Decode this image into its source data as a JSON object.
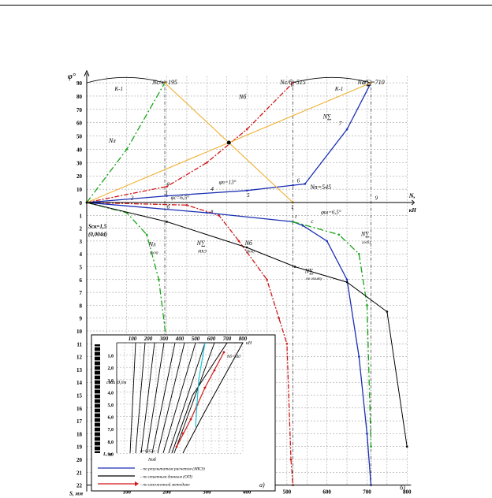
{
  "colors": {
    "axis": "#000000",
    "grid": "#8c8c8c",
    "green": "#1aa31a",
    "red": "#d01818",
    "blue": "#1c2fb4",
    "orange": "#f0b030",
    "black": "#000000",
    "cyan": "#19c8d8",
    "magenta": "#e0208a"
  },
  "chart_data": {
    "type": "line",
    "axes": {
      "phi_label": "φ°",
      "n_label": "N,",
      "n_unit": "кН",
      "s_label": "S, мм",
      "phi_ticks": [
        "90",
        "80",
        "70",
        "60",
        "50",
        "40",
        "30",
        "20",
        "10",
        "0"
      ],
      "s_ticks": [
        "1",
        "2",
        "3",
        "4",
        "5",
        "6",
        "7",
        "8",
        "9",
        "10",
        "11",
        "12",
        "13",
        "14",
        "15",
        "16",
        "17",
        "18",
        "19",
        "20",
        "21",
        "22"
      ],
      "n_ticks": [
        "100",
        "200",
        "300",
        "400",
        "500",
        "600",
        "700",
        "800"
      ],
      "phi_range": [
        0,
        95
      ],
      "s_range": [
        0,
        22
      ],
      "n_range": [
        0,
        800
      ]
    },
    "top_labels": [
      {
        "text": "Nс/л=195",
        "n": 195
      },
      {
        "text": "Nс/б=515",
        "n": 515
      },
      {
        "text": "Nс/∑=710",
        "n": 710
      }
    ],
    "annotations": {
      "k1_left": "К-1",
      "k1_right": "К-1",
      "n_pi": "Nп=545",
      "phi_p": "φп=13°",
      "phi_c": "φс=6,5°",
      "phi_sh": "φш=6,5°",
      "s_ck": "Sск=1,5",
      "s_ck2": "(0,004d)",
      "n_b_label": "Nб",
      "n_l_label": "Nл",
      "n_sigma_label": "N∑",
      "n_l_bottom": "Nл",
      "n_l_bottom_sub": "(осв)",
      "n_sig_mke": "N∑",
      "n_sig_mke_sub": "МКЭ",
      "n_b_bottom": "Nб",
      "n_b_bottom_sub": "(бок)",
      "n_sig_right": "N∑",
      "n_sig_right_sub": "(осб)",
      "n_sig_opyt": "N∑",
      "n_sig_opyt_sub": "по опыту",
      "point_labels": [
        "2",
        "3",
        "4",
        "5",
        "6",
        "7",
        "8",
        "9",
        "1",
        "а",
        "б",
        "в",
        "г",
        "с",
        "о",
        "к"
      ],
      "panel_b": "б)"
    },
    "series": [
      {
        "key": "green_upper",
        "points": [
          [
            0,
            0
          ],
          [
            100,
            40
          ],
          [
            195,
            90
          ]
        ]
      },
      {
        "key": "red_upper",
        "points": [
          [
            0,
            0
          ],
          [
            200,
            12
          ],
          [
            300,
            30
          ],
          [
            400,
            55
          ],
          [
            515,
            90
          ]
        ]
      },
      {
        "key": "blue_upper",
        "points": [
          [
            0,
            0
          ],
          [
            200,
            5
          ],
          [
            400,
            9
          ],
          [
            515,
            13
          ],
          [
            545,
            14
          ],
          [
            650,
            55
          ],
          [
            710,
            90
          ]
        ]
      },
      {
        "key": "orange_x1",
        "points": [
          [
            195,
            90
          ],
          [
            515,
            0
          ]
        ]
      },
      {
        "key": "orange_x2",
        "points": [
          [
            0,
            0
          ],
          [
            710,
            90
          ]
        ]
      },
      {
        "key": "green_lower",
        "points": [
          [
            0,
            0
          ],
          [
            100,
            0.8
          ],
          [
            150,
            2.5
          ],
          [
            180,
            6
          ],
          [
            200,
            11
          ]
        ]
      },
      {
        "key": "red_lower",
        "points": [
          [
            0,
            0
          ],
          [
            250,
            0.2
          ],
          [
            330,
            1
          ],
          [
            380,
            3
          ],
          [
            450,
            6
          ],
          [
            480,
            9
          ],
          [
            500,
            11
          ],
          [
            510,
            20
          ],
          [
            515,
            22
          ]
        ]
      },
      {
        "key": "blue_lower",
        "points": [
          [
            0,
            0
          ],
          [
            300,
            0.8
          ],
          [
            515,
            1.5
          ],
          [
            540,
            1.8
          ],
          [
            600,
            3
          ],
          [
            650,
            6
          ],
          [
            680,
            12
          ],
          [
            700,
            18
          ],
          [
            710,
            22
          ]
        ]
      },
      {
        "key": "green_right",
        "points": [
          [
            515,
            1.5
          ],
          [
            630,
            2.5
          ],
          [
            680,
            4
          ],
          [
            700,
            8
          ],
          [
            710,
            19
          ]
        ]
      },
      {
        "key": "black_lower",
        "points": [
          [
            0,
            0
          ],
          [
            200,
            1.5
          ],
          [
            400,
            3.5
          ],
          [
            520,
            5
          ],
          [
            650,
            6.2
          ],
          [
            750,
            8.5
          ],
          [
            800,
            19
          ]
        ]
      }
    ],
    "inset": {
      "title_unit": "кН",
      "top_ticks": [
        "100",
        "200",
        "300",
        "400",
        "500",
        "600",
        "700",
        "800"
      ],
      "depth_ticks": [
        "1,0",
        "2,0",
        "3,0",
        "4,0",
        "5,0",
        "6,0",
        "7,0",
        "8,0",
        "9,0"
      ],
      "depth_label": "L, м",
      "legend": [
        "- по результатам расчетов (МКЭ)",
        "- по опытным данным (ОП)",
        "- по изложенной методике"
      ],
      "sigma_note": "σ=0,35м",
      "n_bottom": "Nоб",
      "panel_a": "а)",
      "n_note": "Nб=540",
      "column_label": "сваи Ø,0м"
    }
  }
}
